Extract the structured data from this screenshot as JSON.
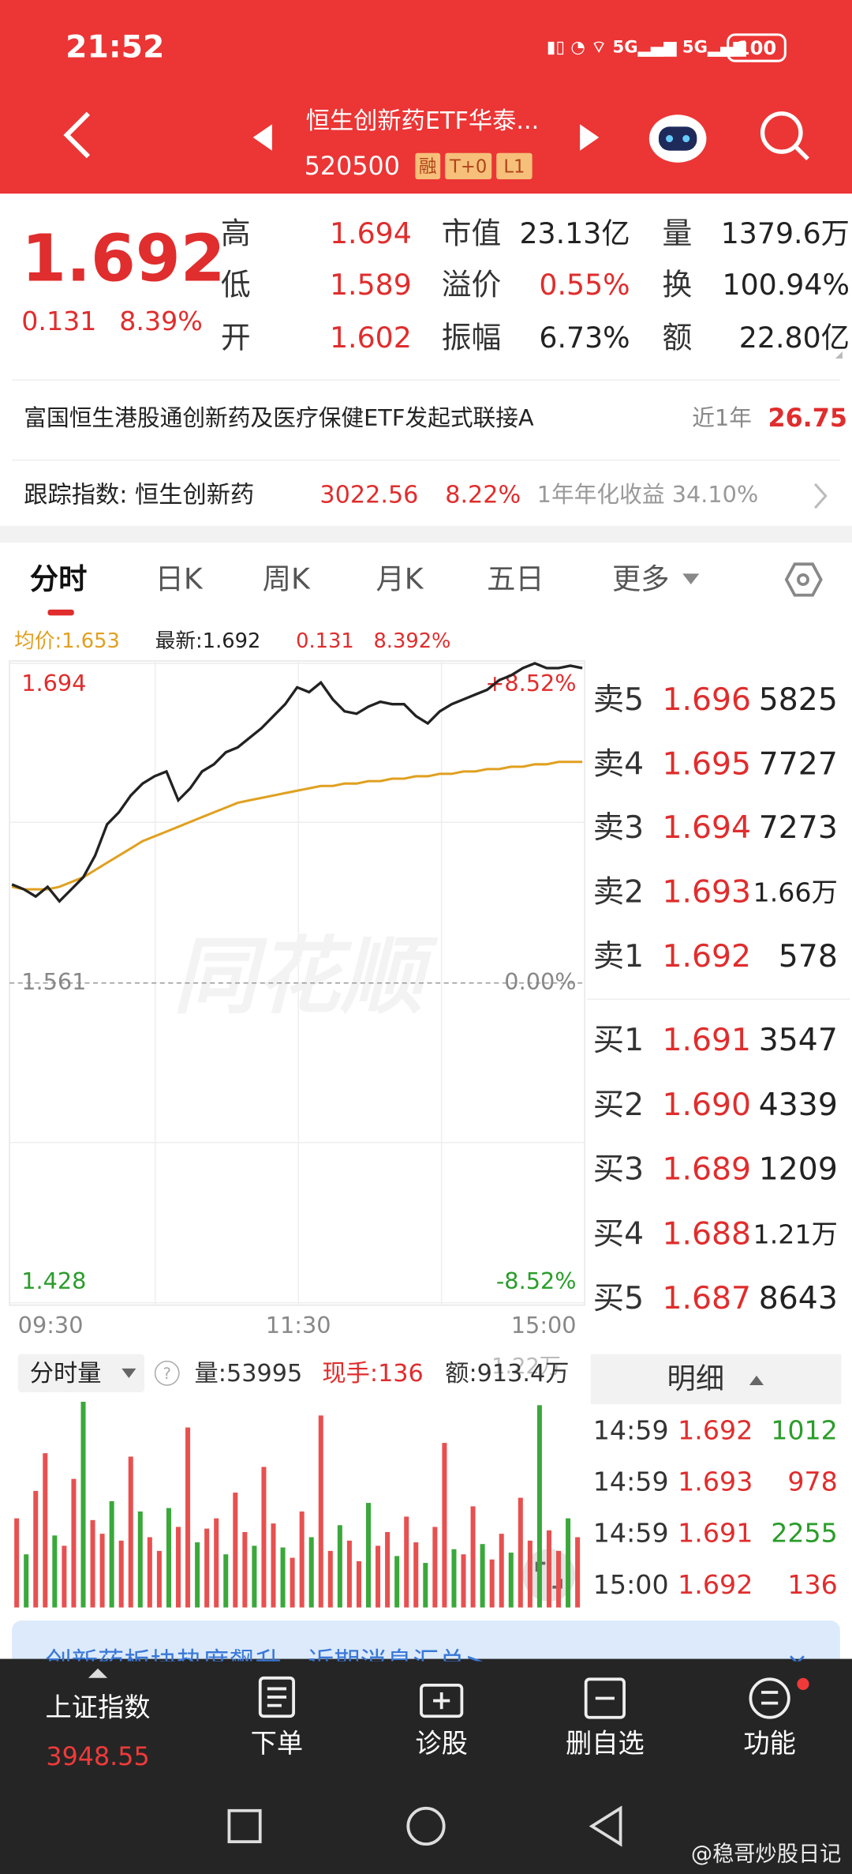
{
  "status_bar": {
    "time": "21:52",
    "battery": "100"
  },
  "header": {
    "title": "恒生创新药ETF华泰...",
    "code": "520500",
    "tags": [
      "融",
      "T+0",
      "L1"
    ]
  },
  "quote": {
    "price": "1.692",
    "change": "0.131",
    "change_pct": "8.39%",
    "stats": [
      {
        "label": "高",
        "value": "1.694",
        "color": "#e02d2d"
      },
      {
        "label": "市值",
        "value": "23.13亿",
        "color": "#222222"
      },
      {
        "label": "量",
        "value": "1379.6万",
        "color": "#222222"
      },
      {
        "label": "低",
        "value": "1.589",
        "color": "#e02d2d"
      },
      {
        "label": "溢价",
        "value": "0.55%",
        "color": "#e02d2d"
      },
      {
        "label": "换",
        "value": "100.94%",
        "color": "#222222"
      },
      {
        "label": "开",
        "value": "1.602",
        "color": "#e02d2d"
      },
      {
        "label": "振幅",
        "value": "6.73%",
        "color": "#222222"
      },
      {
        "label": "额",
        "value": "22.80亿",
        "color": "#222222"
      }
    ]
  },
  "fund": {
    "name": "富国恒生港股通创新药及医疗保健ETF发起式联接A",
    "period": "近1年",
    "return": "26.75"
  },
  "index": {
    "label": "跟踪指数: 恒生创新药",
    "value": "3022.56",
    "change_pct": "8.22%",
    "annual": "1年年化收益 34.10%"
  },
  "tabs": [
    "分时",
    "日K",
    "周K",
    "月K",
    "五日",
    "更多"
  ],
  "intraday": {
    "type": "line",
    "avg_label": "均价:1.653",
    "latest_label": "最新:1.692",
    "change": "0.131",
    "change_pct": "8.392%",
    "watermark": "同花顺",
    "ylim": [
      1.428,
      1.694
    ],
    "yticks": [
      1.694,
      1.561,
      1.428
    ],
    "pct_ticks": [
      "+8.52%",
      "0.00%",
      "-8.52%"
    ],
    "times": [
      "09:30",
      "11:30",
      "15:00"
    ],
    "series": [
      {
        "color": "#222222",
        "values": [
          1.602,
          1.6,
          1.597,
          1.601,
          1.595,
          1.6,
          1.605,
          1.614,
          1.627,
          1.632,
          1.639,
          1.644,
          1.647,
          1.649,
          1.637,
          1.642,
          1.649,
          1.652,
          1.657,
          1.659,
          1.663,
          1.667,
          1.672,
          1.677,
          1.684,
          1.682,
          1.686,
          1.679,
          1.674,
          1.673,
          1.676,
          1.678,
          1.677,
          1.677,
          1.672,
          1.669,
          1.674,
          1.677,
          1.679,
          1.681,
          1.683,
          1.687,
          1.689,
          1.692,
          1.694,
          1.692,
          1.692,
          1.693,
          1.692
        ]
      },
      {
        "color": "#e0a020",
        "values": [
          1.601,
          1.6,
          1.6,
          1.6,
          1.601,
          1.603,
          1.605,
          1.608,
          1.611,
          1.614,
          1.617,
          1.62,
          1.622,
          1.624,
          1.626,
          1.628,
          1.63,
          1.632,
          1.634,
          1.636,
          1.637,
          1.638,
          1.639,
          1.64,
          1.641,
          1.642,
          1.643,
          1.643,
          1.644,
          1.644,
          1.645,
          1.645,
          1.646,
          1.646,
          1.647,
          1.647,
          1.648,
          1.648,
          1.649,
          1.649,
          1.65,
          1.65,
          1.651,
          1.651,
          1.652,
          1.652,
          1.653,
          1.653,
          1.653
        ]
      }
    ]
  },
  "volume": {
    "type": "bar",
    "label": "分时量",
    "volume": "量:53995",
    "current": "现手:136",
    "amount": "额:913.4万",
    "max_label": "1.22万",
    "ylim": [
      0,
      12200
    ],
    "up_color": "#e85050",
    "down_color": "#3aa83a",
    "values": [
      5200,
      3100,
      6800,
      9000,
      4200,
      3600,
      7500,
      12000,
      5100,
      4300,
      6200,
      3900,
      8800,
      5600,
      4100,
      3300,
      5800,
      4700,
      10500,
      3800,
      4600,
      5200,
      3100,
      6700,
      4400,
      3600,
      8200,
      4900,
      3500,
      2900,
      5600,
      4100,
      11200,
      3300,
      4800,
      3900,
      2700,
      6100,
      3600,
      4400,
      3000,
      5300,
      3800,
      2600,
      4700,
      9600,
      3400,
      3100,
      5900,
      3700,
      2800,
      4300,
      3200,
      6400,
      3900,
      11800,
      4500,
      3300,
      5200,
      4100
    ]
  },
  "order_book": {
    "asks": [
      {
        "label": "卖5",
        "price": "1.696",
        "volume": "5825"
      },
      {
        "label": "卖4",
        "price": "1.695",
        "volume": "7727"
      },
      {
        "label": "卖3",
        "price": "1.694",
        "volume": "7273"
      },
      {
        "label": "卖2",
        "price": "1.693",
        "volume": "1.66万"
      },
      {
        "label": "卖1",
        "price": "1.692",
        "volume": "578"
      }
    ],
    "bids": [
      {
        "label": "买1",
        "price": "1.691",
        "volume": "3547"
      },
      {
        "label": "买2",
        "price": "1.690",
        "volume": "4339"
      },
      {
        "label": "买3",
        "price": "1.689",
        "volume": "1209"
      },
      {
        "label": "买4",
        "price": "1.688",
        "volume": "1.21万"
      },
      {
        "label": "买5",
        "price": "1.687",
        "volume": "8643"
      }
    ]
  },
  "detail": {
    "title": "明细",
    "rows": [
      {
        "time": "14:59",
        "price": "1.692",
        "volume": "1012",
        "color": "#2a9d2a"
      },
      {
        "time": "14:59",
        "price": "1.693",
        "volume": "978",
        "color": "#e02d2d"
      },
      {
        "time": "14:59",
        "price": "1.691",
        "volume": "2255",
        "color": "#2a9d2a"
      },
      {
        "time": "15:00",
        "price": "1.692",
        "volume": "136",
        "color": "#e02d2d"
      }
    ]
  },
  "banner": {
    "text": "创新药板块热度飙升，近期消息汇总>"
  },
  "bottom_nav": {
    "index_name": "上证指数",
    "index_value": "3948.55",
    "items": [
      "下单",
      "诊股",
      "删自选",
      "功能"
    ]
  },
  "watermark": "@稳哥炒股日记"
}
